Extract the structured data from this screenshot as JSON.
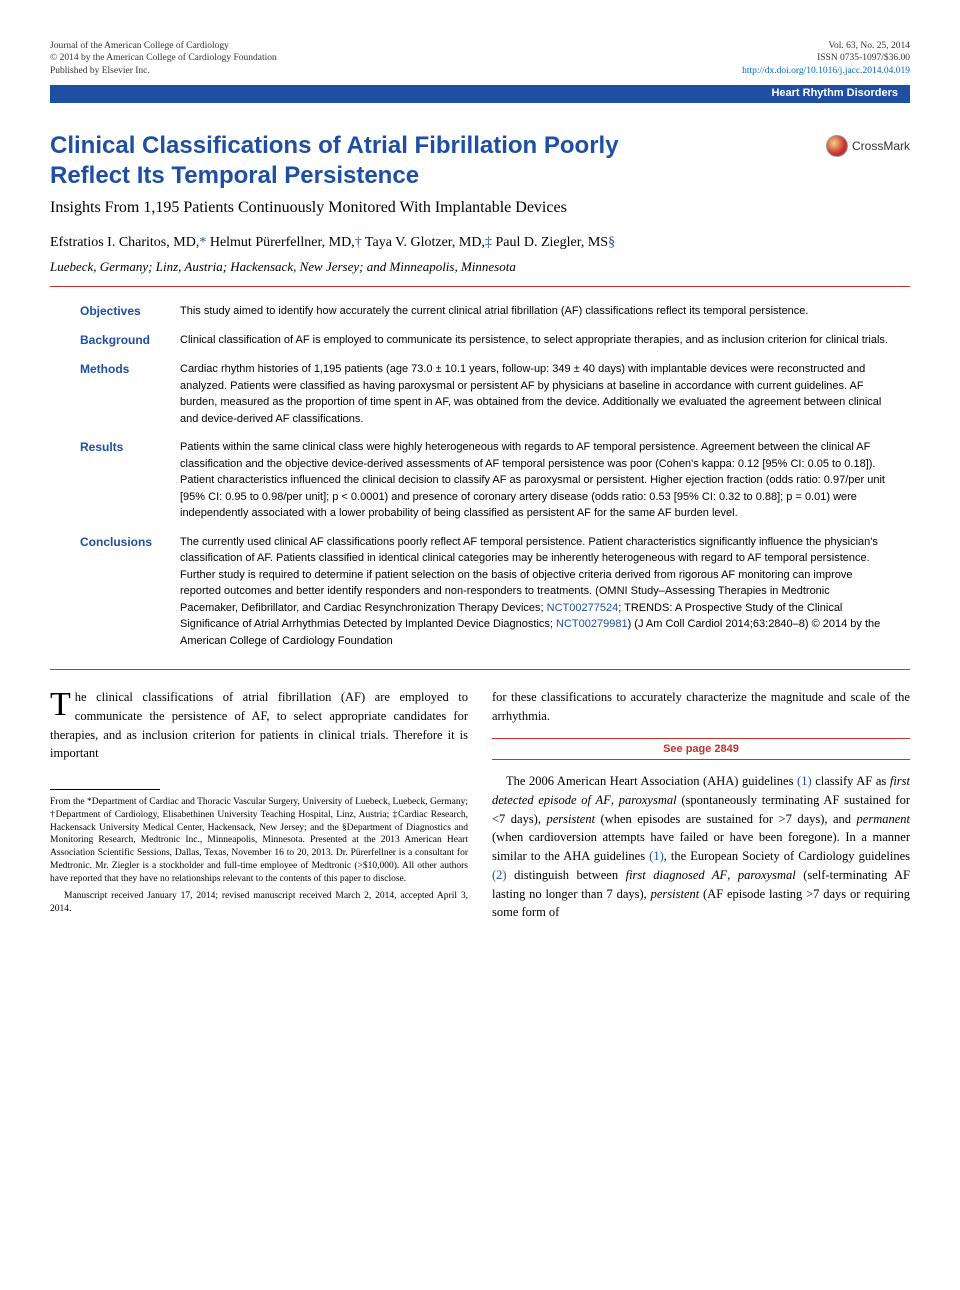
{
  "header": {
    "journal_line1": "Journal of the American College of Cardiology",
    "journal_line2": "© 2014 by the American College of Cardiology Foundation",
    "journal_line3": "Published by Elsevier Inc.",
    "vol_line": "Vol. 63, No. 25, 2014",
    "issn_line": "ISSN 0735-1097/$36.00",
    "doi_line": "http://dx.doi.org/10.1016/j.jacc.2014.04.019"
  },
  "section_label": "Heart Rhythm Disorders",
  "crossmark_label": "CrossMark",
  "title": "Clinical Classifications of Atrial Fibrillation Poorly Reflect Its Temporal Persistence",
  "subtitle": "Insights From 1,195 Patients Continuously Monitored With Implantable Devices",
  "authors_html": "Efstratios I. Charitos, MD,* Helmut Pürerfellner, MD,† Taya V. Glotzer, MD,‡ Paul D. Ziegler, MS§",
  "author_symbols": [
    "*",
    "†",
    "‡",
    "§"
  ],
  "affiliations": "Luebeck, Germany; Linz, Austria; Hackensack, New Jersey; and Minneapolis, Minnesota",
  "abstract": {
    "Objectives": "This study aimed to identify how accurately the current clinical atrial fibrillation (AF) classifications reflect its temporal persistence.",
    "Background": "Clinical classification of AF is employed to communicate its persistence, to select appropriate therapies, and as inclusion criterion for clinical trials.",
    "Methods": "Cardiac rhythm histories of 1,195 patients (age 73.0 ± 10.1 years, follow-up: 349 ± 40 days) with implantable devices were reconstructed and analyzed. Patients were classified as having paroxysmal or persistent AF by physicians at baseline in accordance with current guidelines. AF burden, measured as the proportion of time spent in AF, was obtained from the device. Additionally we evaluated the agreement between clinical and device-derived AF classifications.",
    "Results": "Patients within the same clinical class were highly heterogeneous with regards to AF temporal persistence. Agreement between the clinical AF classification and the objective device-derived assessments of AF temporal persistence was poor (Cohen's kappa: 0.12 [95% CI: 0.05 to 0.18]). Patient characteristics influenced the clinical decision to classify AF as paroxysmal or persistent. Higher ejection fraction (odds ratio: 0.97/per unit [95% CI: 0.95 to 0.98/per unit]; p < 0.0001) and presence of coronary artery disease (odds ratio: 0.53 [95% CI: 0.32 to 0.88]; p = 0.01) were independently associated with a lower probability of being classified as persistent AF for the same AF burden level.",
    "Conclusions": "The currently used clinical AF classifications poorly reflect AF temporal persistence. Patient characteristics significantly influence the physician's classification of AF. Patients classified in identical clinical categories may be inherently heterogeneous with regard to AF temporal persistence. Further study is required to determine if patient selection on the basis of objective criteria derived from rigorous AF monitoring can improve reported outcomes and better identify responders and non-responders to treatments. (OMNI Study–Assessing Therapies in Medtronic Pacemaker, Defibrillator, and Cardiac Resynchronization Therapy Devices; |NCT00277524|; TRENDS: A Prospective Study of the Clinical Significance of Atrial Arrhythmias Detected by Implanted Device Diagnostics; |NCT00279981|)   (J Am Coll Cardiol 2014;63:2840–8) © 2014 by the American College of Cardiology Foundation"
  },
  "abstract_order": [
    "Objectives",
    "Background",
    "Methods",
    "Results",
    "Conclusions"
  ],
  "body": {
    "col1_para": "The clinical classifications of atrial fibrillation (AF) are employed to communicate the persistence of AF, to select appropriate candidates for therapies, and as inclusion criterion for patients in clinical trials. Therefore it is important",
    "col1_dropcap": "T",
    "col1_after_drop": "he clinical classifications of atrial fibrillation (AF) are employed to communicate the persistence of AF, to select appropriate candidates for therapies, and as inclusion criterion for patients in clinical trials. Therefore it is important",
    "footnote": "From the *Department of Cardiac and Thoracic Vascular Surgery, University of Luebeck, Luebeck, Germany; †Department of Cardiology, Elisabethinen University Teaching Hospital, Linz, Austria; ‡Cardiac Research, Hackensack University Medical Center, Hackensack, New Jersey; and the §Department of Diagnostics and Monitoring Research, Medtronic Inc., Minneapolis, Minnesota. Presented at the 2013 American Heart Association Scientific Sessions, Dallas, Texas, November 16 to 20, 2013. Dr. Pürerfellner is a consultant for Medtronic. Mr. Ziegler is a stockholder and full-time employee of Medtronic (>$10,000). All other authors have reported that they have no relationships relevant to the contents of this paper to disclose.",
    "manuscript": "Manuscript received January 17, 2014; revised manuscript received March 2, 2014, accepted April 3, 2014.",
    "col2_para1": "for these classifications to accurately characterize the magnitude and scale of the arrhythmia.",
    "see_page": "See page 2849",
    "col2_para2_prefix": "The 2006 American Heart Association (AHA) guidelines ",
    "col2_para2_ref1": "(1)",
    "col2_para2_mid": " classify AF as ",
    "col2_para2_rest": "first detected episode of AF, paroxysmal (spontaneously terminating AF sustained for <7 days), persistent (when episodes are sustained for >7 days), and permanent (when cardioversion attempts have failed or have been foregone). In a manner similar to the AHA guidelines ",
    "col2_para2_ref2": "(1)",
    "col2_para2_after": ", the European Society of Cardiology guidelines ",
    "col2_para2_ref3": "(2)",
    "col2_para2_end": " distinguish between first diagnosed AF, paroxysmal (self-terminating AF lasting no longer than 7 days), persistent (AF episode lasting >7 days or requiring some form of"
  },
  "colors": {
    "blue": "#1e4fa3",
    "red": "#c73030",
    "link": "#0066cc"
  }
}
